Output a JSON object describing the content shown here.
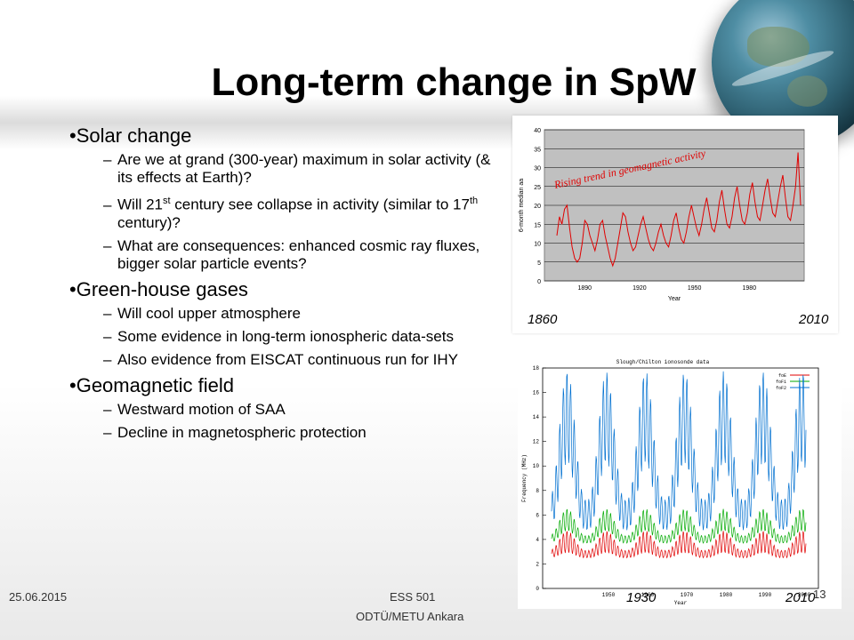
{
  "slide": {
    "title": "Long-term change in SpW",
    "date": "25.06.2015",
    "course": "ESS 501",
    "institution": "ODTÜ/METU Ankara",
    "page_number": "13"
  },
  "bullets": {
    "solar": {
      "heading": "Solar change",
      "items": [
        {
          "text": "Are we at grand (300-year) maximum in solar activity (& its effects at Earth)?"
        },
        {
          "a": "Will 21",
          "sup1": "st",
          "b": " century see collapse in activity (similar to 17",
          "sup2": "th",
          "c": " century)?"
        },
        {
          "text": "What are consequences: enhanced cosmic ray fluxes, bigger solar particle events?"
        }
      ]
    },
    "greenhouse": {
      "heading": "Green-house gases",
      "items": [
        {
          "text": "Will cool upper atmosphere"
        },
        {
          "text": "Some evidence in long-term ionospheric data-sets"
        },
        {
          "text": "Also evidence from EISCAT continuous run for IHY"
        }
      ]
    },
    "geomag": {
      "heading": "Geomagnetic field",
      "items": [
        {
          "text": "Westward motion of SAA"
        },
        {
          "text": "Decline in magnetospheric protection"
        }
      ]
    }
  },
  "chart_data": [
    {
      "type": "line",
      "title": "",
      "annotation": "Rising trend in geomagnetic activity",
      "xlabel": "Year",
      "ylabel": "6-month median aa",
      "x_ticks": [
        "1890",
        "1920",
        "1950",
        "1980"
      ],
      "y_ticks": [
        0,
        5,
        10,
        15,
        20,
        25,
        30,
        35,
        40
      ],
      "ylim": [
        0,
        40
      ],
      "xlim": [
        1868,
        2010
      ],
      "start_label": "1860",
      "end_label": "2010",
      "grid": true,
      "series": [
        {
          "values": [
            12,
            17,
            15,
            19,
            20,
            14,
            9,
            6,
            5,
            6,
            10,
            16,
            15,
            12,
            10,
            8,
            11,
            15,
            16,
            12,
            9,
            6,
            4,
            6,
            10,
            14,
            18,
            17,
            13,
            10,
            8,
            9,
            12,
            15,
            17,
            14,
            11,
            9,
            8,
            10,
            13,
            15,
            12,
            10,
            9,
            12,
            16,
            18,
            14,
            11,
            10,
            13,
            17,
            20,
            17,
            14,
            12,
            15,
            19,
            22,
            18,
            14,
            13,
            16,
            21,
            24,
            19,
            15,
            14,
            17,
            22,
            25,
            20,
            16,
            15,
            18,
            23,
            26,
            21,
            17,
            16,
            20,
            24,
            27,
            22,
            18,
            17,
            21,
            25,
            28,
            22,
            17,
            16,
            20,
            25,
            34,
            20
          ],
          "color": "#e00000"
        }
      ]
    },
    {
      "type": "line",
      "title": "Slough/Chilton ionosonde data",
      "xlabel": "Year",
      "ylabel": "Frequency (MHz)",
      "x_ticks": [
        "1950",
        "1960",
        "1970",
        "1980",
        "1990",
        "2000"
      ],
      "y_ticks": [
        0,
        2,
        4,
        6,
        8,
        10,
        12,
        14,
        16,
        18
      ],
      "ylim": [
        0,
        18
      ],
      "start_label": "1930",
      "end_label": "2010",
      "legend": [
        "foE",
        "foF1",
        "foF2"
      ],
      "legend_position": "top-right",
      "series": [
        {
          "name": "foE",
          "color": "#e00000"
        },
        {
          "name": "foF1",
          "color": "#00aa00"
        },
        {
          "name": "foF2",
          "color": "#0070d0"
        }
      ]
    }
  ]
}
